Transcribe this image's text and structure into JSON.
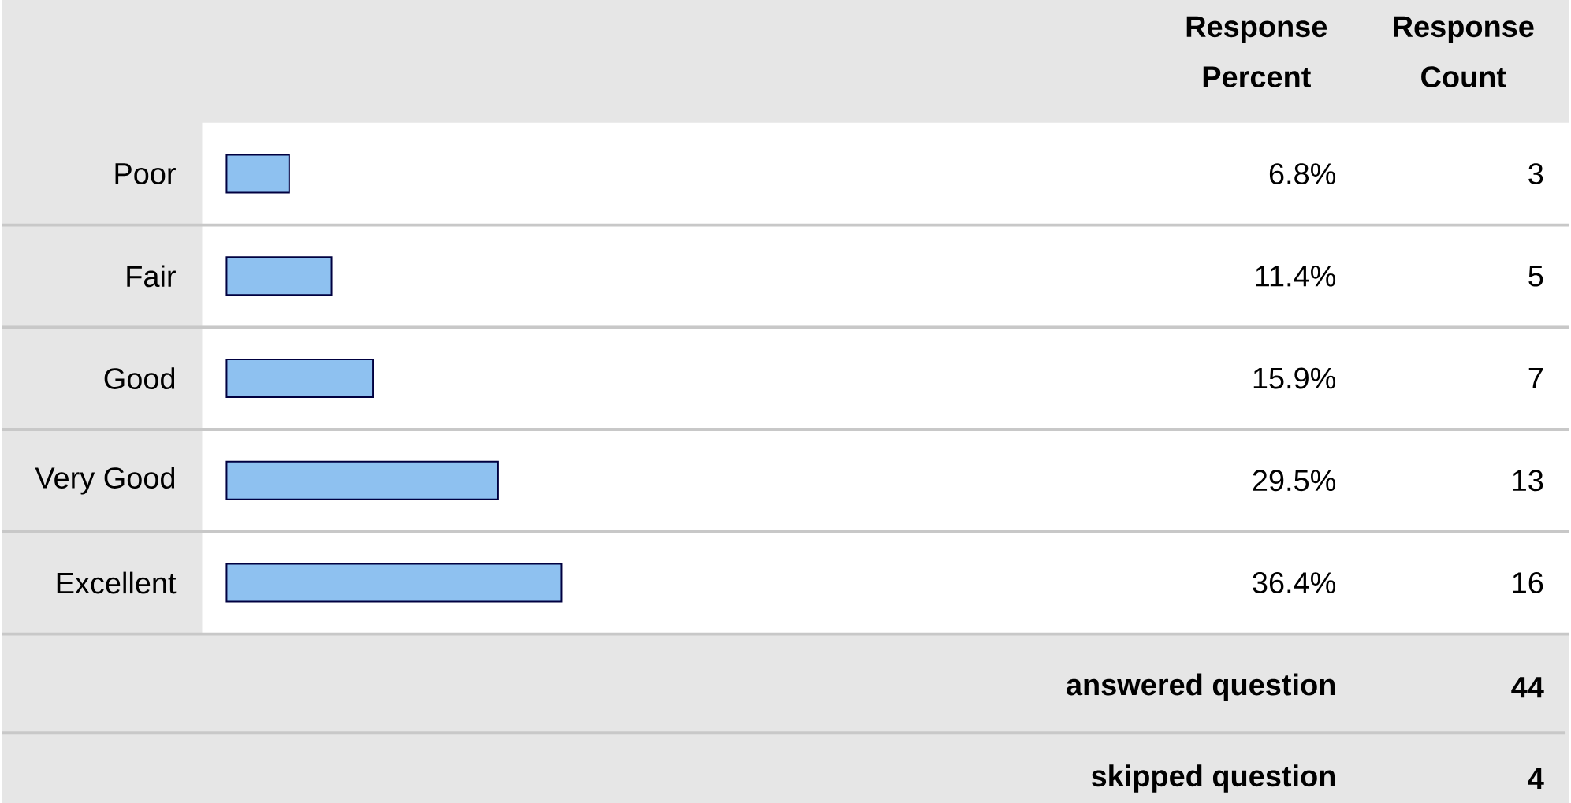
{
  "chart_data": {
    "type": "bar",
    "orientation": "horizontal",
    "categories": [
      "Poor",
      "Fair",
      "Good",
      "Very Good",
      "Excellent"
    ],
    "values": [
      6.8,
      11.4,
      15.9,
      29.5,
      36.4
    ],
    "value_labels": [
      "6.8%",
      "11.4%",
      "15.9%",
      "29.5%",
      "36.4%"
    ],
    "color": "#8ec1f0",
    "annotations": [
      "Response Percent",
      "Response Count",
      "3",
      "5",
      "7",
      "13",
      "16",
      "answered question",
      "44",
      "skipped question",
      "4"
    ]
  }
}
